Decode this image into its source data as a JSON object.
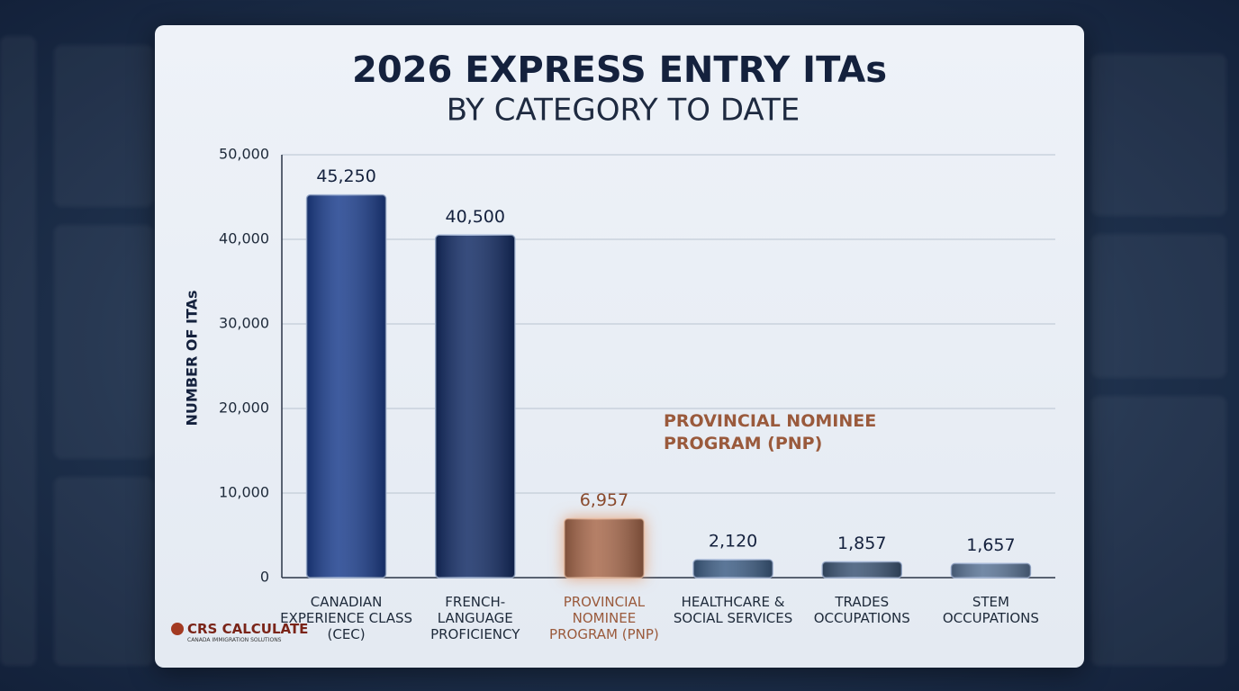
{
  "chart_data": {
    "type": "bar",
    "title": "2026 EXPRESS ENTRY ITAs",
    "subtitle": "BY CATEGORY TO DATE",
    "y_label": "NUMBER OF ITAs",
    "categories": [
      "CANADIAN EXPERIENCE CLASS (CEC)",
      "FRENCH-LANGUAGE PROFICIENCY",
      "PROVINCIAL NOMINEE PROGRAM (PNP)",
      "HEALTHCARE & SOCIAL SERVICES",
      "TRADES OCCUPATIONS",
      "STEM OCCUPATIONS"
    ],
    "values": [
      45250,
      40500,
      6957,
      2120,
      1857,
      1657
    ],
    "value_labels": [
      "45,250",
      "40,500",
      "6,957",
      "2,120",
      "1,857",
      "1,657"
    ],
    "colors": [
      "#1d3f8e",
      "#142d66",
      "#a8694c",
      "#3f5f86",
      "#3d5676",
      "#5b7597"
    ],
    "ylim": [
      0,
      50000
    ],
    "yticks": [
      0,
      {
        "value": 10000,
        "label": "10,000"
      },
      {
        "value": 20000,
        "label": "20,000"
      },
      {
        "value": 30000,
        "label": "30,000"
      },
      {
        "value": 40000,
        "label": "40,000"
      },
      {
        "value": 50000,
        "label": "50,000"
      }
    ],
    "grid": true,
    "annotation": "PROVINCIAL NOMINEE PROGRAM (PNP)",
    "highlight_index": 2
  },
  "logo": {
    "name": "CRS CALCULATE",
    "tagline": "CANADA IMMIGRATION SOLUTIONS"
  }
}
